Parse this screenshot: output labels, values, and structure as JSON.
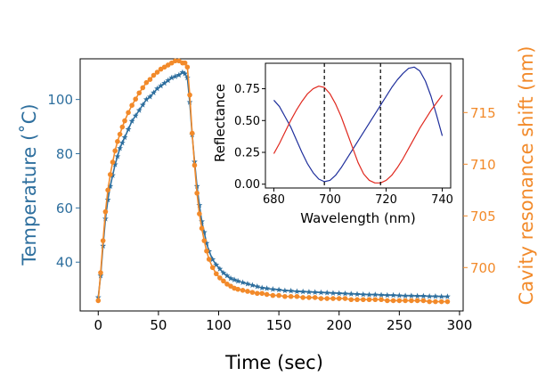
{
  "chart_data": {
    "main": {
      "type": "line",
      "xlabel": "Time (sec)",
      "ylabel_left": "Temperature (˚C)",
      "ylabel_right": "Cavity resonance shift (nm)",
      "xlim": [
        -15,
        303
      ],
      "ylim_left": [
        22,
        115
      ],
      "ylim_right": [
        695.8,
        720.2
      ],
      "x_ticks": [
        0,
        50,
        100,
        150,
        200,
        250,
        300
      ],
      "y_ticks_left": [
        40,
        60,
        80,
        100
      ],
      "y_ticks_right": [
        700,
        705,
        710,
        715
      ],
      "colors": {
        "temperature": "#2e6f9e",
        "shift": "#f28a2a",
        "left_axis_text": "#2e6f9e",
        "right_axis_text": "#f28a2a"
      },
      "series": [
        {
          "name": "Temperature",
          "marker": "star",
          "axis": "left",
          "x": [
            0,
            2,
            4,
            6,
            8,
            10,
            12,
            14,
            16,
            18,
            20,
            22,
            25,
            28,
            31,
            34,
            37,
            40,
            43,
            46,
            49,
            52,
            55,
            58,
            61,
            64,
            67,
            70,
            72,
            74,
            76,
            78,
            80,
            82,
            84,
            86,
            88,
            90,
            92,
            95,
            98,
            101,
            104,
            107,
            110,
            113,
            116,
            120,
            124,
            128,
            132,
            136,
            140,
            145,
            150,
            155,
            160,
            165,
            170,
            175,
            180,
            185,
            190,
            195,
            200,
            205,
            210,
            215,
            220,
            225,
            230,
            235,
            240,
            245,
            250,
            255,
            260,
            265,
            270,
            275,
            280,
            285,
            290
          ],
          "y": [
            27,
            35,
            46,
            56,
            63,
            68,
            72,
            76,
            79,
            82,
            84,
            86,
            89,
            92,
            94,
            96,
            98,
            100,
            101,
            102.5,
            104,
            105,
            106,
            107,
            108,
            108.5,
            109,
            110,
            109.5,
            108,
            99,
            87,
            77,
            68,
            61,
            55,
            51,
            47,
            44,
            41,
            39,
            37.5,
            36,
            35,
            34,
            33.5,
            33,
            32.5,
            32,
            31.5,
            31,
            30.5,
            30.3,
            30,
            29.8,
            29.5,
            29.4,
            29.2,
            29.1,
            29,
            28.9,
            28.8,
            28.7,
            28.6,
            28.5,
            28.4,
            28.3,
            28.2,
            28.1,
            28,
            28,
            27.9,
            27.8,
            27.8,
            27.7,
            27.6,
            27.6,
            27.5,
            27.5,
            27.4,
            27.4,
            27.3,
            27.3
          ]
        },
        {
          "name": "Cavity resonance shift",
          "marker": "circle",
          "axis": "right",
          "x": [
            0,
            2,
            4,
            6,
            8,
            10,
            12,
            14,
            16,
            18,
            20,
            22,
            25,
            28,
            31,
            34,
            37,
            40,
            43,
            46,
            49,
            52,
            55,
            58,
            61,
            64,
            67,
            70,
            72,
            74,
            76,
            78,
            80,
            82,
            84,
            86,
            88,
            90,
            92,
            95,
            98,
            101,
            104,
            107,
            110,
            113,
            116,
            120,
            124,
            128,
            132,
            136,
            140,
            145,
            150,
            155,
            160,
            165,
            170,
            175,
            180,
            185,
            190,
            195,
            200,
            205,
            210,
            215,
            220,
            225,
            230,
            235,
            240,
            245,
            250,
            255,
            260,
            265,
            270,
            275,
            280,
            285,
            290
          ],
          "y": [
            696.8,
            699.5,
            702.6,
            705.4,
            707.5,
            709,
            710.2,
            711.3,
            712.2,
            712.9,
            713.6,
            714.2,
            715,
            715.7,
            716.3,
            716.9,
            717.4,
            717.9,
            718.2,
            718.6,
            718.9,
            719.2,
            719.4,
            719.6,
            719.8,
            720,
            720,
            719.8,
            719.8,
            719.4,
            716.7,
            713,
            709.9,
            707.2,
            705.2,
            703.8,
            702.6,
            701.6,
            700.8,
            700,
            699.4,
            699,
            698.7,
            698.4,
            698.2,
            698,
            697.9,
            697.8,
            697.7,
            697.6,
            697.5,
            697.5,
            697.4,
            697.3,
            697.3,
            697.2,
            697.2,
            697.2,
            697.1,
            697.1,
            697.1,
            697,
            697,
            697,
            697,
            697,
            696.9,
            696.9,
            696.9,
            696.9,
            696.9,
            696.9,
            696.8,
            696.8,
            696.8,
            696.8,
            696.8,
            696.8,
            696.8,
            696.7,
            696.7,
            696.7,
            696.7
          ]
        }
      ]
    },
    "inset": {
      "type": "line",
      "xlabel": "Wavelength (nm)",
      "ylabel": "Reflectance",
      "xlim": [
        677,
        743
      ],
      "ylim": [
        -0.03,
        0.95
      ],
      "x_ticks": [
        680,
        700,
        720,
        740
      ],
      "y_ticks": [
        0.0,
        0.25,
        0.5,
        0.75
      ],
      "y_tick_labels": [
        "0.00",
        "0.25",
        "0.50",
        "0.75"
      ],
      "vlines": [
        698,
        718
      ],
      "colors": {
        "blue": "#1f2f9c",
        "red": "#e0291f",
        "vline": "#000000"
      },
      "series": [
        {
          "name": "blue",
          "x": [
            680,
            682,
            684,
            686,
            688,
            690,
            692,
            694,
            696,
            698,
            700,
            702,
            704,
            706,
            708,
            710,
            712,
            714,
            716,
            718,
            720,
            722,
            724,
            726,
            728,
            730,
            732,
            734,
            736,
            738,
            740
          ],
          "y": [
            0.66,
            0.61,
            0.53,
            0.45,
            0.35,
            0.25,
            0.16,
            0.09,
            0.04,
            0.02,
            0.03,
            0.07,
            0.13,
            0.2,
            0.27,
            0.34,
            0.41,
            0.48,
            0.55,
            0.62,
            0.69,
            0.76,
            0.82,
            0.87,
            0.91,
            0.92,
            0.89,
            0.81,
            0.69,
            0.54,
            0.38
          ]
        },
        {
          "name": "red",
          "x": [
            680,
            682,
            684,
            686,
            688,
            690,
            692,
            694,
            696,
            698,
            700,
            702,
            704,
            706,
            708,
            710,
            712,
            714,
            716,
            718,
            720,
            722,
            724,
            726,
            728,
            730,
            732,
            734,
            736,
            738,
            740
          ],
          "y": [
            0.24,
            0.32,
            0.41,
            0.5,
            0.58,
            0.65,
            0.71,
            0.75,
            0.77,
            0.76,
            0.71,
            0.63,
            0.53,
            0.41,
            0.29,
            0.17,
            0.08,
            0.03,
            0.01,
            0.01,
            0.03,
            0.07,
            0.13,
            0.2,
            0.28,
            0.36,
            0.44,
            0.51,
            0.58,
            0.64,
            0.7
          ]
        }
      ]
    }
  }
}
